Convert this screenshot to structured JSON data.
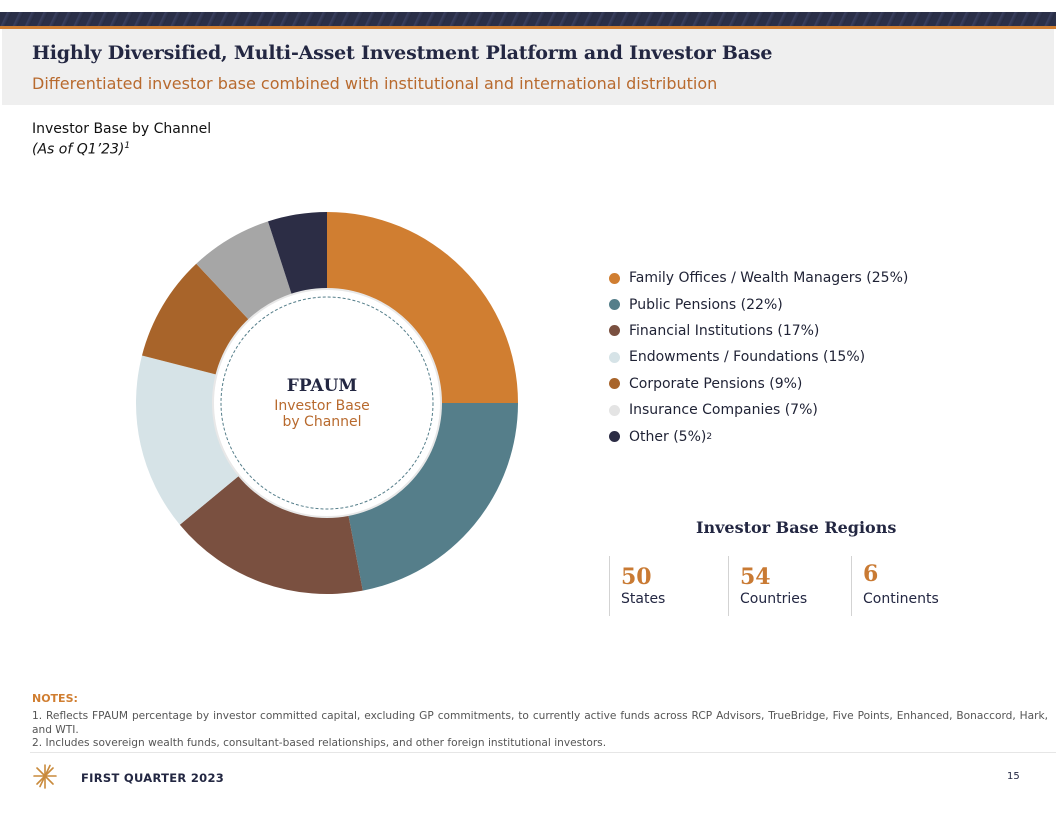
{
  "header": {
    "title": "Highly Diversified, Multi-Asset Investment Platform and Investor Base",
    "subtitle": "Differentiated investor base combined with institutional and international distribution"
  },
  "section": {
    "label": "Investor Base by Channel",
    "as_of": "(As of Q1’23)",
    "footnote_ref": "1"
  },
  "chart_data": {
    "type": "pie",
    "title": "Investor Base by Channel",
    "center_title": "FPAUM",
    "center_subtitle_line1": "Investor Base",
    "center_subtitle_line2": "by Channel",
    "categories": [
      "Family Offices / Wealth Managers",
      "Public Pensions",
      "Financial Institutions",
      "Endowments / Foundations",
      "Corporate Pensions",
      "Insurance Companies",
      "Other"
    ],
    "values": [
      25,
      22,
      17,
      15,
      9,
      7,
      5
    ],
    "colors": [
      "#d07e31",
      "#557e8a",
      "#7a5040",
      "#d6e3e7",
      "#a8642a",
      "#a6a6a6",
      "#2c2d45"
    ],
    "legend_colors": [
      "#d07e31",
      "#557e8a",
      "#7a5040",
      "#d6e3e7",
      "#a8642a",
      "#e4e4e4",
      "#2c2d45"
    ],
    "legend_labels": [
      "Family Offices / Wealth Managers (25%)",
      "Public Pensions (22%)",
      "Financial Institutions (17%)",
      "Endowments / Foundations (15%)",
      "Corporate Pensions (9%)",
      "Insurance Companies (7%)",
      "Other (5%)"
    ],
    "other_footnote_ref": "2",
    "legend_position": "right"
  },
  "regions": {
    "title": "Investor Base Regions",
    "stats": [
      {
        "value": "50",
        "label": "States"
      },
      {
        "value": "54",
        "label": "Countries"
      },
      {
        "value": "6",
        "label": "Continents"
      }
    ]
  },
  "notes": {
    "heading": "NOTES:",
    "items": [
      "1. Reflects FPAUM percentage by investor committed capital, excluding GP commitments, to currently active funds across RCP Advisors, TrueBridge, Five Points, Enhanced, Bonaccord, Hark, and WTI.",
      "2. Includes sovereign wealth funds, consultant-based relationships, and other foreign institutional investors."
    ]
  },
  "footer": {
    "text": "FIRST QUARTER 2023",
    "page_number": "15"
  }
}
